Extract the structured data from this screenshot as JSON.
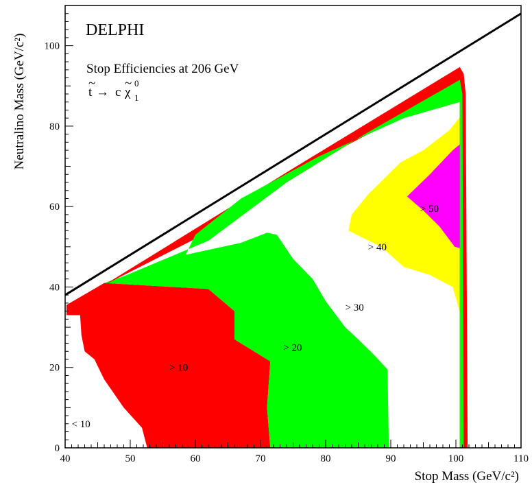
{
  "chart_data": {
    "type": "area",
    "experiment": "DELPHI",
    "subtitle": "Stop Efficiencies at 206 GeV",
    "process": {
      "stop_symbol": "t",
      "arrow": "→",
      "charm": "c",
      "neutralino_symbol": "χ",
      "neutralino_sup": "0",
      "neutralino_sub": "1"
    },
    "xlabel": "Stop Mass (GeV/c²)",
    "ylabel": "Neutralino Mass (GeV/c²)",
    "xlim": [
      40,
      110
    ],
    "ylim": [
      0,
      110
    ],
    "xticks": [
      "40",
      "50",
      "60",
      "70",
      "80",
      "90",
      "100",
      "110"
    ],
    "yticks": [
      "0",
      "20",
      "40",
      "60",
      "80",
      "100"
    ],
    "grid": false,
    "kinematic_limit": [
      [
        40,
        38
      ],
      [
        110,
        108
      ]
    ],
    "colors": {
      "gt10": "#ff0000",
      "gt20": "#00ff00",
      "gt40": "#ffff00",
      "gt50": "#ff00ff",
      "line": "#000000"
    },
    "regions": [
      {
        "label": "< 10",
        "label_at": [
          41,
          6
        ],
        "fill": "none",
        "polygon": []
      },
      {
        "label": "> 10",
        "label_at": [
          56,
          20
        ],
        "fill": "gt10",
        "polygon": [
          [
            40.2,
            33
          ],
          [
            40.2,
            35.5
          ],
          [
            46,
            41
          ],
          [
            62,
            39.5
          ],
          [
            66,
            34
          ],
          [
            66,
            27
          ],
          [
            70,
            23
          ],
          [
            71.5,
            21.5
          ],
          [
            71,
            10
          ],
          [
            71.5,
            0
          ],
          [
            52.6,
            0
          ],
          [
            51.8,
            5
          ],
          [
            49,
            10
          ],
          [
            46,
            17
          ],
          [
            44.5,
            22
          ],
          [
            43,
            24
          ],
          [
            42.5,
            28
          ],
          [
            42.3,
            33
          ]
        ]
      },
      {
        "label": "> 20",
        "label_at": [
          73.5,
          25
        ],
        "fill": "gt20",
        "polygon": [
          [
            46,
            41
          ],
          [
            58.5,
            48
          ],
          [
            67,
            51
          ],
          [
            71,
            53.5
          ],
          [
            72.5,
            53
          ],
          [
            75,
            47
          ],
          [
            78,
            42
          ],
          [
            80,
            36.5
          ],
          [
            83,
            30
          ],
          [
            85,
            27
          ],
          [
            87.5,
            23
          ],
          [
            89.5,
            19.5
          ],
          [
            89.7,
            0
          ],
          [
            71.5,
            0
          ],
          [
            71,
            10
          ],
          [
            71.5,
            21.5
          ],
          [
            70,
            23
          ],
          [
            66,
            27
          ],
          [
            66,
            34
          ],
          [
            62,
            39.5
          ]
        ]
      },
      {
        "label": "> 30",
        "label_at": [
          83,
          35
        ],
        "fill": "none",
        "polygon": []
      },
      {
        "label": "> 40",
        "label_at": [
          86.5,
          50
        ],
        "fill": "gt40",
        "polygon": [
          [
            83.5,
            54
          ],
          [
            84,
            58
          ],
          [
            86.5,
            63
          ],
          [
            89,
            67
          ],
          [
            91.5,
            71
          ],
          [
            95,
            74
          ],
          [
            99,
            79
          ],
          [
            101,
            83
          ],
          [
            101,
            31.5
          ],
          [
            99.5,
            40
          ],
          [
            96,
            43
          ],
          [
            92,
            45
          ],
          [
            88.5,
            50
          ]
        ]
      },
      {
        "label": "> 50",
        "label_at": [
          94.5,
          59.5
        ],
        "fill": "gt50",
        "polygon": [
          [
            92.5,
            62.5
          ],
          [
            96,
            68
          ],
          [
            99.5,
            74
          ],
          [
            101,
            76
          ],
          [
            101,
            49.5
          ],
          [
            99.8,
            50
          ],
          [
            97.5,
            55
          ],
          [
            95,
            59
          ]
        ]
      },
      {
        "label": "",
        "fill": "gt10",
        "polygon": [
          [
            46,
            40.5
          ],
          [
            75,
            69.5
          ],
          [
            100.6,
            94.7
          ],
          [
            101.2,
            93
          ],
          [
            101.5,
            88
          ],
          [
            101.8,
            0
          ],
          [
            100.6,
            0
          ],
          [
            100.6,
            90
          ],
          [
            83,
            75
          ],
          [
            60,
            52
          ],
          [
            47,
            41.3
          ]
        ]
      },
      {
        "label": "",
        "fill": "gt20",
        "polygon": [
          [
            47,
            41.3
          ],
          [
            62,
            51.5
          ],
          [
            74,
            66
          ],
          [
            86,
            78
          ],
          [
            100.6,
            91.5
          ],
          [
            101,
            88
          ],
          [
            101.2,
            0
          ],
          [
            100.6,
            0
          ],
          [
            100.6,
            86
          ],
          [
            92,
            82
          ],
          [
            79,
            72.5
          ],
          [
            67,
            62
          ],
          [
            60,
            53
          ],
          [
            58.5,
            48
          ]
        ]
      }
    ]
  }
}
